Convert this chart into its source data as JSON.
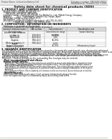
{
  "bg_color": "#ffffff",
  "header_left": "Product Name: Lithium Ion Battery Cell",
  "header_right_line1": "Substance number: SBN-0481-00010",
  "header_right_line2": "Establishment / Revision: Dec.7,2016",
  "title": "Safety data sheet for chemical products (SDS)",
  "section1_title": "1. PRODUCT AND COMPANY IDENTIFICATION",
  "section1_items": [
    "Product name: Lithium Ion Battery Cell",
    "Product code: Cylindrical type cell",
    "      SNY-B550J, SNY-B650J, SNY-B650A",
    "Company name:   Sumitomo Electric Eco-Media Co., Ltd., Mobile Energy Company",
    "Address:        2021  Kannakuban, Sumoto City, Hyogo, Japan",
    "Telephone number :  +81-799-26-4111",
    "Fax number:  +81-799-26-4120",
    "Emergency telephone number (Weekdays) +81-799-26-2662",
    "                    (Night and holiday) +81-799-26-4101"
  ],
  "section2_title": "2. COMPOSITION / INFORMATION ON INGREDIENTS",
  "section2_subtitle": "Substance or preparation: Preparation",
  "section2_table_header": "Information about the chemical nature of products",
  "table_col0": "Common chemical name /\nGeneral name",
  "table_col1": "CAS number",
  "table_col2": "Concentration /\nConcentration range\n(0-100%)",
  "table_col3": "Classification and\nhazard labeling",
  "table_rows": [
    [
      "Lithium oxide ceramics\n(LiMnCoO4)",
      "",
      "",
      ""
    ],
    [
      "Iron",
      "7439-89-6",
      "35-25%",
      ""
    ],
    [
      "Aluminum",
      "7429-90-5",
      "2-6%",
      ""
    ],
    [
      "Graphite\n(Meta or graphite-1)\n(Artificial graphite)",
      "7782-42-5\n7782-44-0",
      "10-25%",
      ""
    ],
    [
      "Copper",
      "",
      "5-10%",
      ""
    ],
    [
      "Organic electrolyte",
      "",
      "10-20%",
      "Inflammatory liquid"
    ]
  ],
  "section3_title": "3. HAZARDS IDENTIFICATION",
  "section3_body": [
    "For this battery cell, chemical materials are stored in a hermetically sealed metal case, designed to withstand",
    "temperatures and pressure environments during normal use. As a result, during normal use conditions, there is no",
    "physical changes of location by expansion and thermal changes. No risk of battery electrolyte leakage.",
    "However, if exposed to a fire, added mechanical shocks, disintegrated, ambient electrolyte spillage may occur.",
    "The gas released cannot be operated. The battery cell case will be penetrated at the cathode, hazardous",
    "materials may be released.",
    "Moreover, if heated strongly by the surrounding fire, local gas may be emitted."
  ],
  "bullet1_title": "Most important hazard and effects:",
  "human_title": "Human health effects:",
  "human_body": [
    "Inhalation: The release of the electrolyte has an anesthesia action and stimulates a respiratory tract.",
    "Skin contact: The release of the electrolyte stimulates a skin. The electrolyte skin contact causes a",
    "sore and stimulation on the skin.",
    "Eye contact: The release of the electrolyte stimulates eyes. The electrolyte eye contact causes a sore",
    "and stimulation on the eye. Especially, a substance that causes a strong inflammation of the eyes is",
    "contained."
  ],
  "env_line1": "Environmental effects: Since a battery cell remains in the environment, do not throw out it into the",
  "env_line2": "environment.",
  "bullet2_title": "Specific hazards:",
  "specific_body": [
    "If the electrolyte contacts with water, it will generate detrimental hydrogen fluoride.",
    "Since the liquid electrolyte is inflammatory liquid, do not bring close to fire."
  ]
}
